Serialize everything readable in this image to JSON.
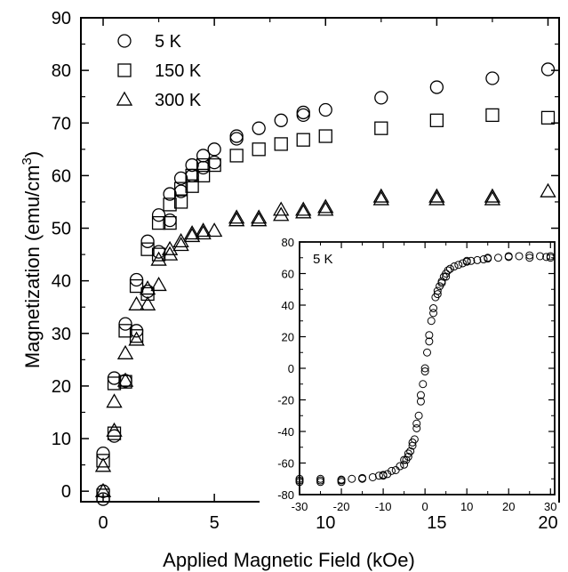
{
  "chart_data": [
    {
      "type": "scatter",
      "title": "",
      "xlabel": "Applied Magnetic Field (kOe)",
      "ylabel_main": "Magnetization (emu/cm",
      "ylabel_sup": "3",
      "ylabel_close": ")",
      "xlim": [
        -1,
        20.5
      ],
      "ylim": [
        -2,
        90
      ],
      "xticks": [
        0,
        5,
        10,
        15,
        20
      ],
      "xtick_labels": [
        "0",
        "5",
        "10",
        "15",
        "20"
      ],
      "yticks": [
        0,
        10,
        20,
        30,
        40,
        50,
        60,
        70,
        80,
        90
      ],
      "ytick_labels": [
        "0",
        "10",
        "20",
        "30",
        "40",
        "50",
        "60",
        "70",
        "80",
        "90"
      ],
      "legend_position": "top-left",
      "series": [
        {
          "name": "5 K",
          "marker": "circle",
          "points": [
            [
              0,
              -1.5
            ],
            [
              0,
              0
            ],
            [
              0,
              7.2
            ],
            [
              0.5,
              10.5
            ],
            [
              0.5,
              21.5
            ],
            [
              1,
              21
            ],
            [
              1,
              31.8
            ],
            [
              1.5,
              30.5
            ],
            [
              1.5,
              40.2
            ],
            [
              2,
              38
            ],
            [
              2,
              47.5
            ],
            [
              2.5,
              45.5
            ],
            [
              2.5,
              52.5
            ],
            [
              3,
              51.5
            ],
            [
              3,
              56.5
            ],
            [
              3.5,
              57
            ],
            [
              3.5,
              59.5
            ],
            [
              4,
              60
            ],
            [
              4,
              62
            ],
            [
              4.5,
              61.5
            ],
            [
              4.5,
              63.8
            ],
            [
              5,
              62.5
            ],
            [
              5,
              65
            ],
            [
              6,
              67
            ],
            [
              6,
              67.5
            ],
            [
              7,
              69
            ],
            [
              8,
              70.5
            ],
            [
              9,
              71.5
            ],
            [
              9,
              72
            ],
            [
              10,
              72.5
            ],
            [
              12.5,
              74.8
            ],
            [
              15,
              76.8
            ],
            [
              17.5,
              78.5
            ],
            [
              20,
              80.2
            ]
          ]
        },
        {
          "name": "150 K",
          "marker": "square",
          "points": [
            [
              0,
              -0.8
            ],
            [
              0,
              5.8
            ],
            [
              0.5,
              11
            ],
            [
              0.5,
              20.5
            ],
            [
              1,
              20.8
            ],
            [
              1,
              30.5
            ],
            [
              1.5,
              29.5
            ],
            [
              1.5,
              39
            ],
            [
              2,
              37.5
            ],
            [
              2,
              46
            ],
            [
              2.5,
              45
            ],
            [
              2.5,
              51
            ],
            [
              3,
              51
            ],
            [
              3,
              54.5
            ],
            [
              3.5,
              55
            ],
            [
              3.5,
              57.5
            ],
            [
              4,
              58
            ],
            [
              4,
              60
            ],
            [
              4.5,
              60
            ],
            [
              4.5,
              62
            ],
            [
              5,
              62
            ],
            [
              6,
              63.8
            ],
            [
              7,
              65
            ],
            [
              8,
              66
            ],
            [
              9,
              66.8
            ],
            [
              10,
              67.5
            ],
            [
              12.5,
              69
            ],
            [
              15,
              70.5
            ],
            [
              17.5,
              71.5
            ],
            [
              20,
              71
            ]
          ]
        },
        {
          "name": "300 K",
          "marker": "triangle",
          "points": [
            [
              0,
              0
            ],
            [
              0,
              4.8
            ],
            [
              0.5,
              11.5
            ],
            [
              0.5,
              17
            ],
            [
              1,
              21
            ],
            [
              1,
              26.2
            ],
            [
              1.5,
              28.8
            ],
            [
              1.5,
              35.5
            ],
            [
              2,
              35.5
            ],
            [
              2,
              38.5
            ],
            [
              2.5,
              39.2
            ],
            [
              2.5,
              44
            ],
            [
              3,
              45
            ],
            [
              3,
              46
            ],
            [
              3.5,
              46.8
            ],
            [
              3.5,
              47.5
            ],
            [
              4,
              48.5
            ],
            [
              4,
              49
            ],
            [
              4.5,
              49
            ],
            [
              4.5,
              49.5
            ],
            [
              5,
              49.5
            ],
            [
              6,
              51.5
            ],
            [
              6,
              52
            ],
            [
              7,
              51.5
            ],
            [
              7,
              52
            ],
            [
              8,
              52.5
            ],
            [
              8,
              53.5
            ],
            [
              9,
              53
            ],
            [
              9,
              53.5
            ],
            [
              10,
              53.5
            ],
            [
              10,
              54
            ],
            [
              12.5,
              55.5
            ],
            [
              12.5,
              56
            ],
            [
              15,
              55.5
            ],
            [
              15,
              56
            ],
            [
              17.5,
              55.5
            ],
            [
              17.5,
              56
            ],
            [
              20,
              57
            ]
          ]
        }
      ]
    },
    {
      "type": "scatter",
      "title": "",
      "annotation": "5 K",
      "xlim": [
        -30,
        31
      ],
      "ylim": [
        -80,
        80
      ],
      "xticks": [
        -30,
        -20,
        -10,
        0,
        10,
        20,
        30
      ],
      "xtick_labels": [
        "-30",
        "-20",
        "-10",
        "0",
        "10",
        "20",
        "30"
      ],
      "yticks": [
        -80,
        -60,
        -40,
        -20,
        0,
        20,
        40,
        60,
        80
      ],
      "ytick_labels": [
        "-80",
        "-60",
        "-40",
        "-20",
        "0",
        "20",
        "40",
        "60",
        "80"
      ],
      "series": [
        {
          "marker": "circle",
          "points": [
            [
              -30,
              -71
            ],
            [
              -30,
              -72
            ],
            [
              -25,
              -71
            ],
            [
              -25,
              -72
            ],
            [
              -20,
              -71
            ],
            [
              -20,
              -72
            ],
            [
              -17.5,
              -70
            ],
            [
              -15,
              -69.5
            ],
            [
              -12.5,
              -69
            ],
            [
              -11,
              -68
            ],
            [
              -10,
              -67.5
            ],
            [
              -9,
              -67
            ],
            [
              -8,
              -65
            ],
            [
              -7,
              -64.5
            ],
            [
              -6,
              -62
            ],
            [
              -5,
              -61
            ],
            [
              -4.5,
              -58
            ],
            [
              -4,
              -56
            ],
            [
              -3.5,
              -52.5
            ],
            [
              -3,
              -49
            ],
            [
              -2.5,
              -45
            ],
            [
              -2,
              -38
            ],
            [
              -1.5,
              -30
            ],
            [
              -1,
              -21
            ],
            [
              -0.5,
              -10
            ],
            [
              0,
              0
            ],
            [
              0.5,
              10
            ],
            [
              1,
              21
            ],
            [
              1.5,
              30
            ],
            [
              2,
              38
            ],
            [
              2.5,
              45
            ],
            [
              3,
              49
            ],
            [
              3.5,
              52
            ],
            [
              4,
              55
            ],
            [
              4.5,
              58
            ],
            [
              5,
              60
            ],
            [
              5.5,
              62
            ],
            [
              6,
              63
            ],
            [
              7,
              64.5
            ],
            [
              8,
              65.5
            ],
            [
              9,
              66.5
            ],
            [
              10,
              67.5
            ],
            [
              11,
              68
            ],
            [
              12.5,
              68.5
            ],
            [
              14,
              69
            ],
            [
              15,
              69.5
            ],
            [
              17.5,
              70
            ],
            [
              20,
              70.5
            ],
            [
              22.5,
              71
            ],
            [
              25,
              71.5
            ],
            [
              27.5,
              71
            ],
            [
              29,
              70.5
            ],
            [
              30,
              70
            ],
            [
              30,
              71
            ],
            [
              25,
              70
            ],
            [
              20,
              71
            ],
            [
              15,
              70
            ],
            [
              10,
              68
            ],
            [
              5,
              58
            ],
            [
              4,
              54
            ],
            [
              3,
              47
            ],
            [
              2,
              35
            ],
            [
              1,
              17
            ],
            [
              0,
              -2
            ],
            [
              -1,
              -17
            ],
            [
              -2,
              -35
            ],
            [
              -3,
              -47
            ],
            [
              -4,
              -54
            ],
            [
              -5,
              -58
            ],
            [
              -10,
              -68
            ],
            [
              -15,
              -70
            ],
            [
              -20,
              -70.5
            ],
            [
              -25,
              -70
            ],
            [
              -30,
              -70
            ]
          ]
        }
      ]
    }
  ]
}
